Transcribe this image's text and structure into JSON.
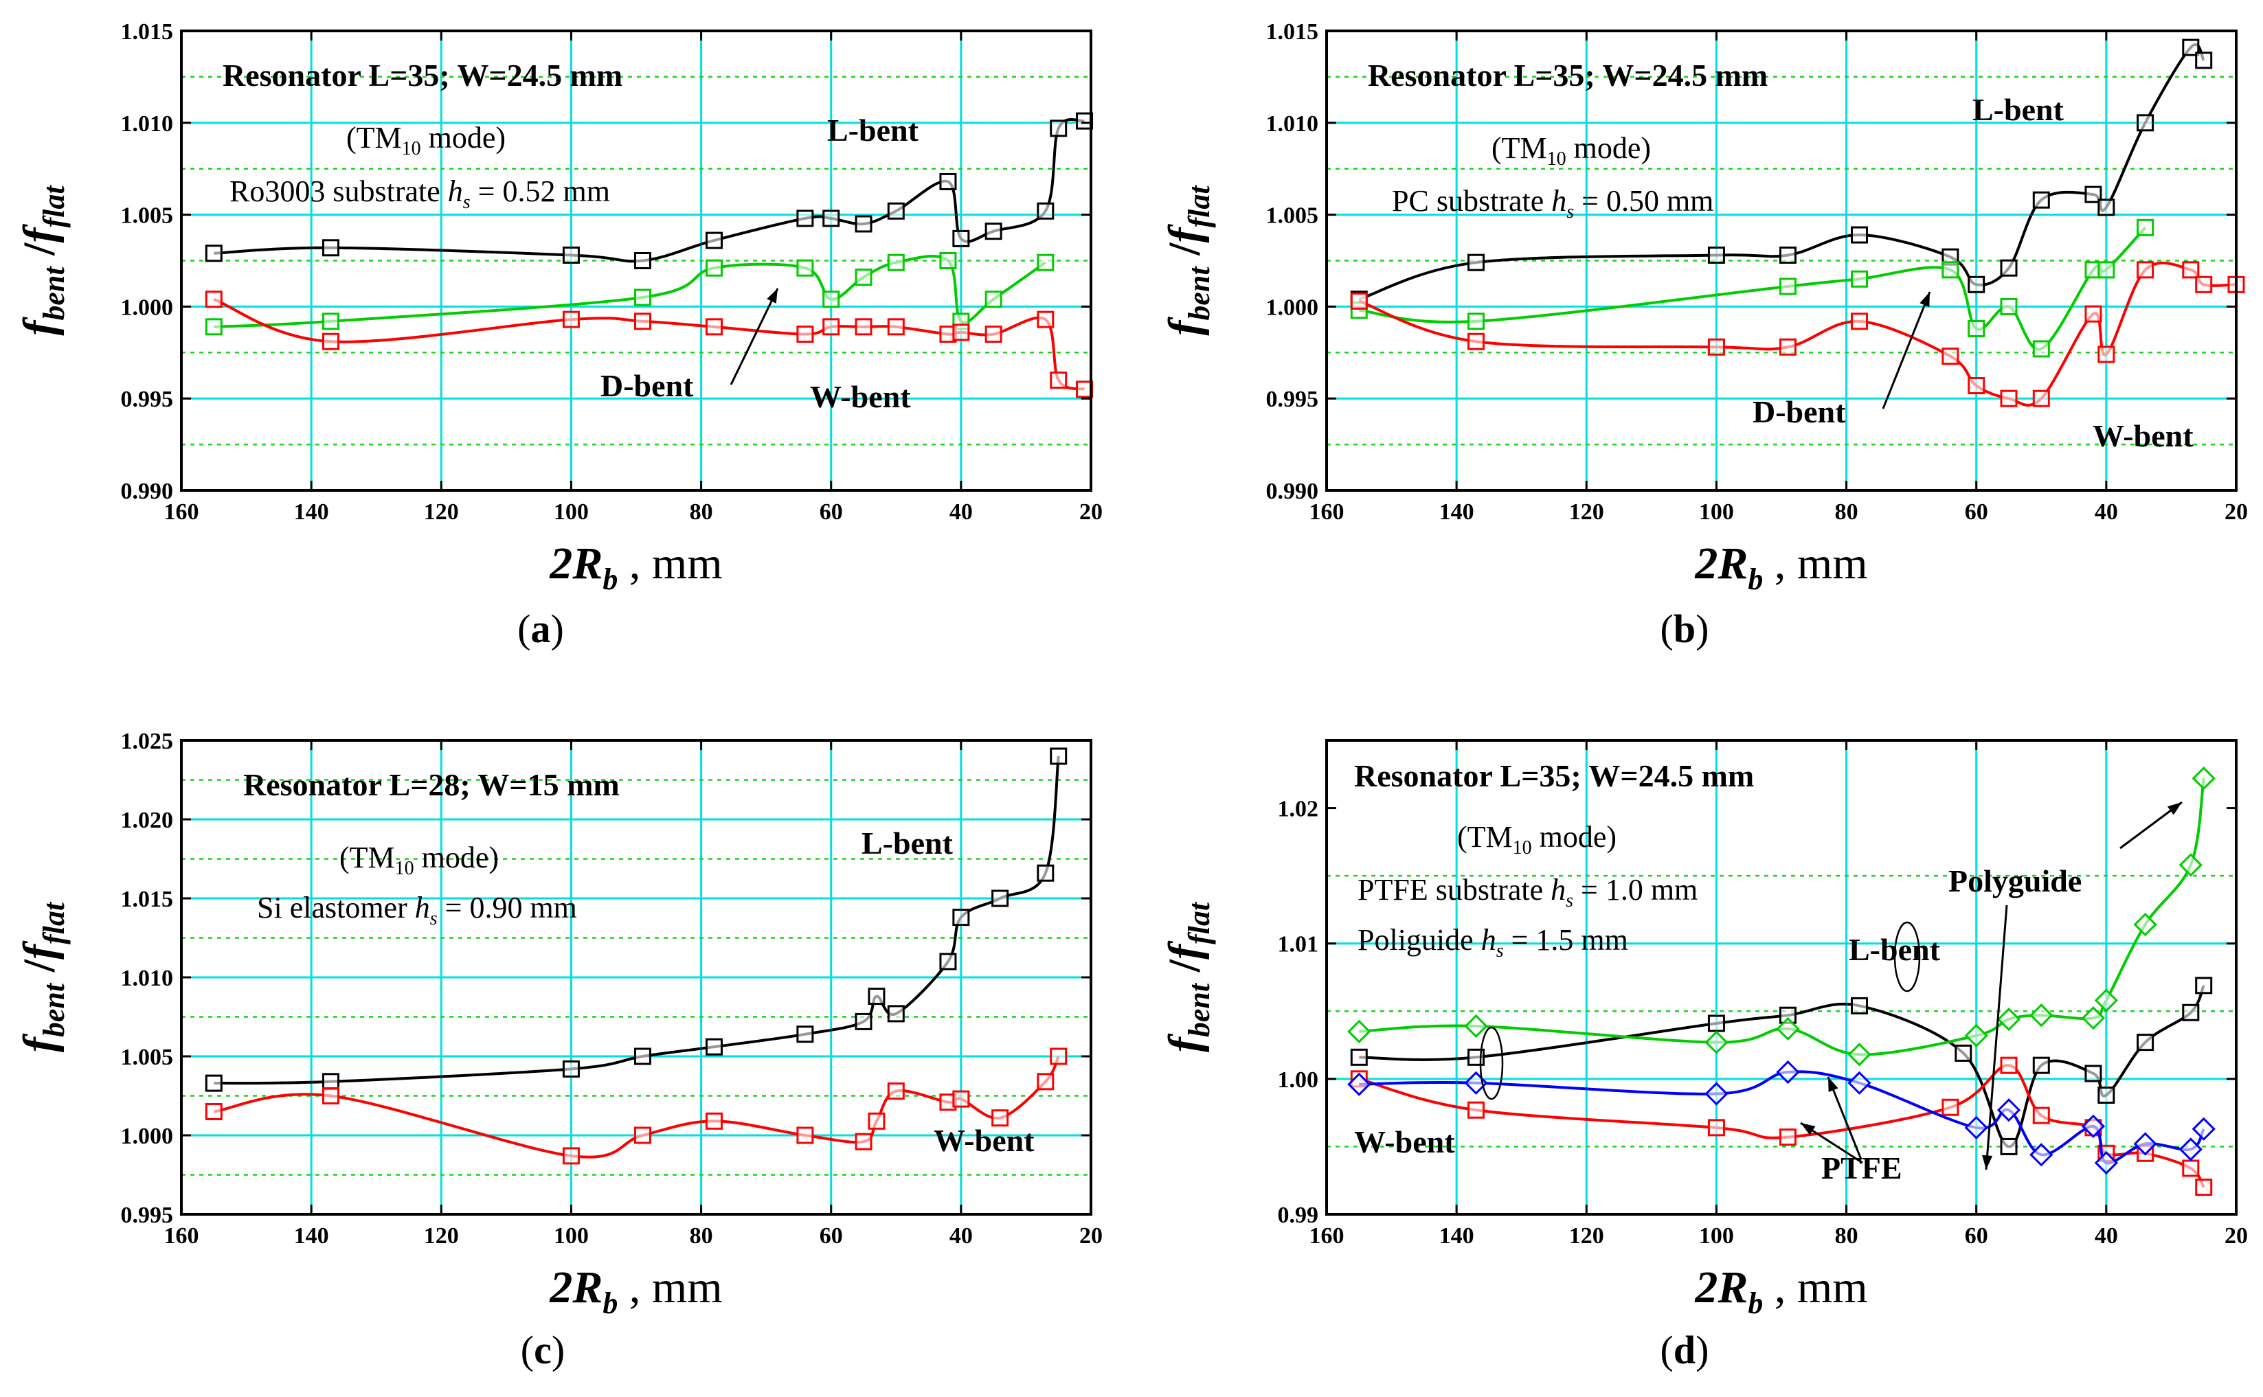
{
  "chart_data": [
    {
      "type": "line",
      "panel_label": "(a)",
      "title": "Resonator L=35; W=24.5 mm",
      "mode_prefix": "(TM",
      "mode_sub": "10",
      "mode_suffix": " mode)",
      "substrate_prefix": "Ro3003 substrate ",
      "substrate_h": "h",
      "substrate_sub": "s",
      "substrate_suffix": " = 0.52 mm",
      "ylabel_main": "f",
      "ylabel_sub1": "bent",
      "ylabel_slash": " /",
      "ylabel_main2": "f",
      "ylabel_sub2": "flat",
      "xlabel_main": "2R",
      "xlabel_sub": "b",
      "xlabel_unit": " , mm",
      "xlim": [
        160,
        20
      ],
      "ylim": [
        0.99,
        1.015
      ],
      "xticks": [
        "160",
        "140",
        "120",
        "100",
        "80",
        "60",
        "40",
        "20"
      ],
      "yticks": [
        "0.990",
        "0.995",
        "1.000",
        "1.005",
        "1.010",
        "1.015"
      ],
      "series": [
        {
          "name": "L-bent",
          "color": "#000000",
          "x": [
            155,
            137,
            100,
            89,
            78,
            64,
            60,
            55,
            50,
            42,
            40,
            35,
            27,
            25,
            21
          ],
          "y": [
            1.0029,
            1.0032,
            1.0028,
            1.0025,
            1.0036,
            1.0048,
            1.0048,
            1.0045,
            1.0052,
            1.0068,
            1.0037,
            1.0041,
            1.0052,
            1.0097,
            1.0101
          ]
        },
        {
          "name": "D-bent",
          "color": "#00cc00",
          "x": [
            155,
            137,
            89,
            78,
            64,
            60,
            55,
            50,
            42,
            40,
            35,
            27
          ],
          "y": [
            0.9989,
            0.9992,
            1.0005,
            1.0021,
            1.0021,
            1.0004,
            1.0016,
            1.0024,
            1.0025,
            0.9992,
            1.0004,
            1.0024
          ]
        },
        {
          "name": "W-bent",
          "color": "#ff0000",
          "x": [
            155,
            137,
            100,
            89,
            78,
            64,
            60,
            55,
            50,
            42,
            40,
            35,
            27,
            25,
            21
          ],
          "y": [
            1.0004,
            0.9981,
            0.9993,
            0.9992,
            0.9989,
            0.9985,
            0.9989,
            0.9989,
            0.9989,
            0.9985,
            0.9986,
            0.9985,
            0.9993,
            0.996,
            0.9955
          ]
        }
      ],
      "annotations": [
        "L-bent",
        "D-bent",
        "W-bent"
      ]
    },
    {
      "type": "line",
      "panel_label": "(b)",
      "title": "Resonator L=35; W=24.5 mm",
      "mode_prefix": "(TM",
      "mode_sub": "10",
      "mode_suffix": " mode)",
      "substrate_prefix": "PC substrate ",
      "substrate_h": "h",
      "substrate_sub": "s",
      "substrate_suffix": " = 0.50 mm",
      "ylabel_main": "f",
      "ylabel_sub1": "bent",
      "ylabel_slash": " /",
      "ylabel_main2": "f",
      "ylabel_sub2": "flat",
      "xlabel_main": "2R",
      "xlabel_sub": "b",
      "xlabel_unit": " , mm",
      "xlim": [
        160,
        20
      ],
      "ylim": [
        0.99,
        1.015
      ],
      "xticks": [
        "160",
        "140",
        "120",
        "100",
        "80",
        "60",
        "40",
        "20"
      ],
      "yticks": [
        "0.990",
        "0.995",
        "1.000",
        "1.005",
        "1.010",
        "1.015"
      ],
      "series": [
        {
          "name": "L-bent",
          "color": "#000000",
          "x": [
            155,
            137,
            100,
            89,
            78,
            64,
            60,
            55,
            50,
            42,
            40,
            34,
            27,
            25
          ],
          "y": [
            1.0004,
            1.0024,
            1.0028,
            1.0028,
            1.0039,
            1.0027,
            1.0012,
            1.0021,
            1.0058,
            1.0061,
            1.0054,
            1.01,
            1.0141,
            1.0134
          ]
        },
        {
          "name": "D-bent",
          "color": "#00cc00",
          "x": [
            155,
            137,
            89,
            78,
            64,
            60,
            55,
            50,
            42,
            40,
            34
          ],
          "y": [
            0.9998,
            0.9992,
            1.0011,
            1.0015,
            1.002,
            0.9988,
            1.0,
            0.9977,
            1.002,
            1.002,
            1.0043
          ]
        },
        {
          "name": "W-bent",
          "color": "#ff0000",
          "x": [
            155,
            137,
            100,
            89,
            78,
            64,
            60,
            55,
            50,
            42,
            40,
            34,
            27,
            25,
            20
          ],
          "y": [
            1.0003,
            0.9981,
            0.9978,
            0.9978,
            0.9992,
            0.9973,
            0.9957,
            0.995,
            0.995,
            0.9996,
            0.9974,
            1.002,
            1.002,
            1.0012,
            1.0012
          ]
        }
      ],
      "annotations": [
        "L-bent",
        "D-bent",
        "W-bent"
      ]
    },
    {
      "type": "line",
      "panel_label": "(c)",
      "title": "Resonator L=28; W=15 mm",
      "mode_prefix": "(TM",
      "mode_sub": "10",
      "mode_suffix": " mode)",
      "substrate_prefix": "Si elastomer ",
      "substrate_h": "h",
      "substrate_sub": "s",
      "substrate_suffix": " = 0.90 mm",
      "ylabel_main": "f",
      "ylabel_sub1": "bent",
      "ylabel_slash": " /",
      "ylabel_main2": "f",
      "ylabel_sub2": "flat",
      "xlabel_main": "2R",
      "xlabel_sub": "b",
      "xlabel_unit": " , mm",
      "xlim": [
        160,
        20
      ],
      "ylim": [
        0.995,
        1.025
      ],
      "xticks": [
        "160",
        "140",
        "120",
        "100",
        "80",
        "60",
        "40",
        "20"
      ],
      "yticks": [
        "0.995",
        "1.000",
        "1.005",
        "1.010",
        "1.015",
        "1.020",
        "1.025"
      ],
      "series": [
        {
          "name": "L-bent",
          "color": "#000000",
          "x": [
            155,
            137,
            100,
            89,
            78,
            64,
            55,
            53,
            50,
            42,
            40,
            34,
            27,
            25
          ],
          "y": [
            1.0033,
            1.0034,
            1.0042,
            1.005,
            1.0056,
            1.0064,
            1.0072,
            1.0088,
            1.0077,
            1.011,
            1.0138,
            1.015,
            1.0166,
            1.024
          ]
        },
        {
          "name": "W-bent",
          "color": "#ff0000",
          "x": [
            155,
            137,
            100,
            89,
            78,
            64,
            55,
            53,
            50,
            42,
            40,
            34,
            27,
            25
          ],
          "y": [
            1.0015,
            1.0025,
            0.9987,
            1.0,
            1.0009,
            1.0,
            0.9996,
            1.0009,
            1.0028,
            1.0021,
            1.0023,
            1.0011,
            1.0034,
            1.005
          ]
        }
      ],
      "annotations": [
        "L-bent",
        "W-bent"
      ]
    },
    {
      "type": "line",
      "panel_label": "(d)",
      "title": "Resonator L=35; W=24.5 mm",
      "mode_prefix": "(TM",
      "mode_sub": "10",
      "mode_suffix": " mode)",
      "substrate_prefix": "PTFE substrate ",
      "substrate_h": "h",
      "substrate_sub": "s",
      "substrate_suffix": " = 1.0 mm",
      "substrate2_prefix": "Poliguide ",
      "substrate2_h": "h",
      "substrate2_sub": "s",
      "substrate2_suffix": " = 1.5 mm",
      "ylabel_main": "f",
      "ylabel_sub1": "bent",
      "ylabel_slash": " /",
      "ylabel_main2": "f",
      "ylabel_sub2": "flat",
      "xlabel_main": "2R",
      "xlabel_sub": "b",
      "xlabel_unit": " , mm",
      "xlim": [
        160,
        20
      ],
      "ylim": [
        0.99,
        1.025
      ],
      "xticks": [
        "160",
        "140",
        "120",
        "100",
        "80",
        "60",
        "40",
        "20"
      ],
      "yticks": [
        "0.99",
        "1.00",
        "1.01",
        "1.02"
      ],
      "series": [
        {
          "name": "L-bent PTFE",
          "color": "#000000",
          "x": [
            155,
            137,
            100,
            89,
            78,
            62,
            55,
            50,
            42,
            40,
            34,
            27,
            25
          ],
          "y": [
            1.0016,
            1.0016,
            1.0041,
            1.0047,
            1.0054,
            1.0019,
            0.995,
            1.001,
            1.0004,
            0.9988,
            1.0027,
            1.0049,
            1.0069
          ]
        },
        {
          "name": "L-bent Polyguide",
          "color": "#00cc00",
          "x": [
            155,
            137,
            100,
            89,
            78,
            60,
            55,
            50,
            42,
            40,
            34,
            27,
            25
          ],
          "y": [
            1.0035,
            1.0039,
            1.0027,
            1.0037,
            1.0018,
            1.0032,
            1.0044,
            1.0047,
            1.0045,
            1.0058,
            1.0114,
            1.0158,
            1.0222
          ]
        },
        {
          "name": "W-bent PTFE",
          "color": "#ff0000",
          "x": [
            155,
            137,
            100,
            89,
            64,
            55,
            50,
            42,
            40,
            34,
            27,
            25
          ],
          "y": [
            1.0,
            0.9977,
            0.9964,
            0.9957,
            0.9979,
            1.001,
            0.9973,
            0.9964,
            0.9945,
            0.9945,
            0.9934,
            0.992
          ]
        },
        {
          "name": "W-bent Polyguide",
          "color": "#0000ff",
          "x": [
            155,
            137,
            100,
            89,
            78,
            60,
            55,
            50,
            42,
            40,
            34,
            27,
            25
          ],
          "y": [
            0.9996,
            0.9997,
            0.9989,
            1.0005,
            0.9997,
            0.9964,
            0.9977,
            0.9944,
            0.9965,
            0.9938,
            0.9952,
            0.9948,
            0.9963
          ]
        }
      ],
      "annotations": [
        "L-bent",
        "W-bent",
        "PTFE",
        "Polyguide"
      ]
    }
  ]
}
